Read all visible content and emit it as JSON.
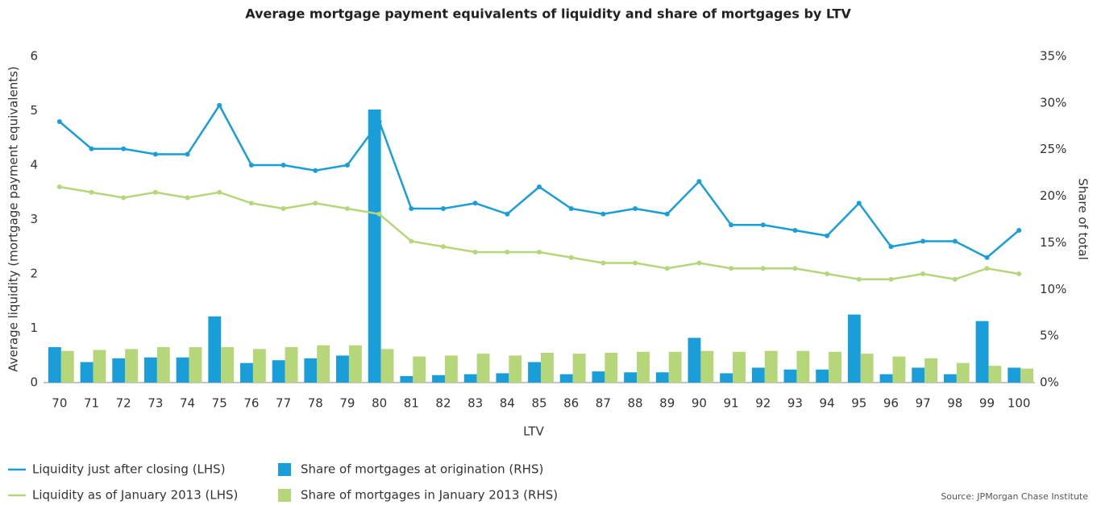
{
  "chart_data": {
    "type": "combo",
    "title": "Average mortgage payment equivalents of liquidity and share of mortgages by LTV",
    "x_label": "LTV",
    "y_label": "Average liquidity (mortgage payment equivalents)",
    "y2_label": "Share of total",
    "source": "Source: JPMorgan Chase Institute",
    "categories": [
      "70",
      "71",
      "72",
      "73",
      "74",
      "75",
      "76",
      "77",
      "78",
      "79",
      "80",
      "81",
      "82",
      "83",
      "84",
      "85",
      "86",
      "87",
      "88",
      "89",
      "90",
      "91",
      "92",
      "93",
      "94",
      "95",
      "96",
      "97",
      "98",
      "99",
      "100"
    ],
    "ylim": [
      0,
      6
    ],
    "yticks": [
      0,
      1,
      2,
      3,
      4,
      5,
      6
    ],
    "y2lim": [
      0,
      35
    ],
    "y2ticks": [
      {
        "value": 0,
        "label": "0%"
      },
      {
        "value": 5,
        "label": "5%"
      },
      {
        "value": 10,
        "label": "10%"
      },
      {
        "value": 15,
        "label": "15%"
      },
      {
        "value": 20,
        "label": "20%"
      },
      {
        "value": 25,
        "label": "25%"
      },
      {
        "value": 30,
        "label": "30%"
      },
      {
        "value": 35,
        "label": "35%"
      }
    ],
    "series": [
      {
        "name": "Liquidity just after closing (LHS)",
        "type": "line",
        "color": "#1a9ed9",
        "values": [
          4.8,
          4.3,
          4.3,
          4.2,
          4.2,
          5.1,
          4.0,
          4.0,
          3.9,
          4.0,
          4.8,
          3.2,
          3.2,
          3.3,
          3.1,
          3.6,
          3.2,
          3.1,
          3.2,
          3.1,
          3.7,
          2.9,
          2.9,
          2.8,
          2.7,
          3.3,
          2.5,
          2.6,
          2.6,
          2.3,
          2.8
        ]
      },
      {
        "name": "Liquidity as of January 2013 (LHS)",
        "type": "line",
        "color": "#b5d77a",
        "values": [
          3.6,
          3.5,
          3.4,
          3.5,
          3.4,
          3.5,
          3.3,
          3.2,
          3.3,
          3.2,
          3.1,
          2.6,
          2.5,
          2.4,
          2.4,
          2.4,
          2.3,
          2.2,
          2.2,
          2.1,
          2.2,
          2.1,
          2.1,
          2.1,
          2.0,
          1.9,
          1.9,
          2.0,
          1.9,
          2.1,
          2.0
        ]
      },
      {
        "name": "Share of mortgages at origination (RHS)",
        "type": "bar",
        "axis": "y2",
        "color": "#1a9ed9",
        "values": [
          3.8,
          2.2,
          2.6,
          2.7,
          2.7,
          7.1,
          2.1,
          2.4,
          2.6,
          2.9,
          29.3,
          0.7,
          0.8,
          0.9,
          1.0,
          2.2,
          0.9,
          1.2,
          1.1,
          1.1,
          4.8,
          1.0,
          1.6,
          1.4,
          1.4,
          7.3,
          0.9,
          1.6,
          0.9,
          6.6,
          1.6
        ]
      },
      {
        "name": "Share of mortgages in January 2013 (RHS)",
        "type": "bar",
        "axis": "y2",
        "color": "#b5d77a",
        "values": [
          3.4,
          3.5,
          3.6,
          3.8,
          3.8,
          3.8,
          3.6,
          3.8,
          4.0,
          4.0,
          3.6,
          2.8,
          2.9,
          3.1,
          2.9,
          3.2,
          3.1,
          3.2,
          3.3,
          3.3,
          3.4,
          3.3,
          3.4,
          3.4,
          3.3,
          3.1,
          2.8,
          2.6,
          2.1,
          1.8,
          1.5
        ]
      }
    ]
  }
}
